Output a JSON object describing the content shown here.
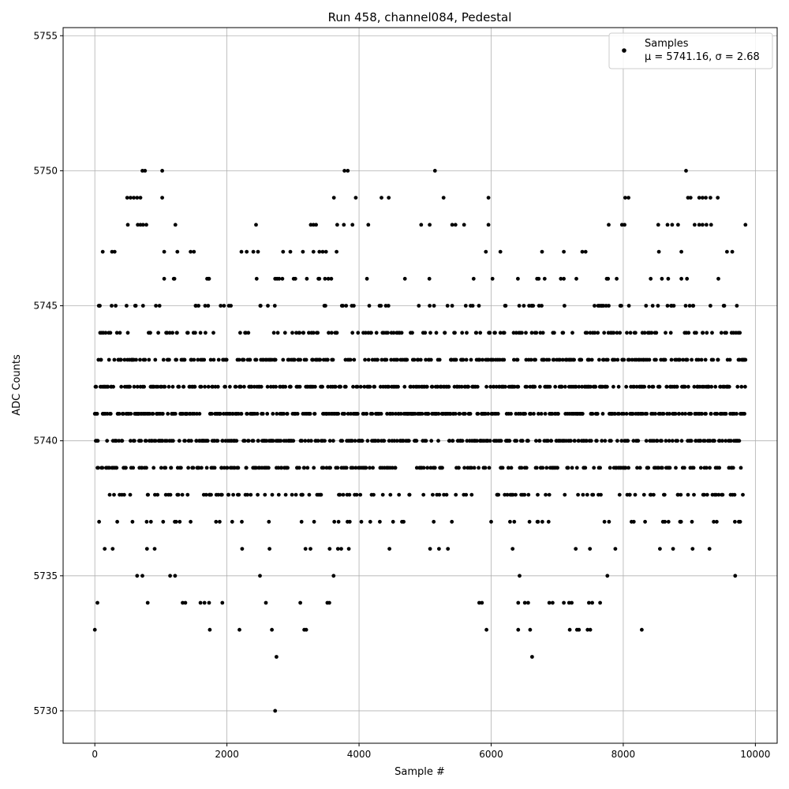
{
  "chart_data": {
    "type": "scatter",
    "title": "Run 458, channel084, Pedestal",
    "xlabel": "Sample #",
    "ylabel": "ADC Counts",
    "xlim": [
      -480,
      10330
    ],
    "ylim": [
      5728.8,
      5755.3
    ],
    "xticks": [
      0,
      2000,
      4000,
      6000,
      8000,
      10000
    ],
    "yticks": [
      5730,
      5735,
      5740,
      5745,
      5750,
      5755
    ],
    "grid": true,
    "marker_color": "#000000",
    "legend": {
      "placement": "top-right",
      "entries": [
        "Samples",
        "μ = 5741.16, σ = 2.68"
      ]
    },
    "series": [
      {
        "name": "Samples",
        "sample_count": 9850,
        "x_range": [
          0,
          9850
        ],
        "mean": 5741.16,
        "std": 2.68,
        "points": [
          [
            0,
            5733
          ],
          [
            2730,
            5730
          ],
          [
            2750,
            5732
          ],
          [
            6620,
            5732
          ],
          [
            1740,
            5733
          ],
          [
            2190,
            5733
          ],
          [
            2680,
            5733
          ],
          [
            3170,
            5733
          ],
          [
            3200,
            5733
          ],
          [
            5930,
            5733
          ],
          [
            6410,
            5733
          ],
          [
            6590,
            5733
          ],
          [
            7190,
            5733
          ],
          [
            7300,
            5733
          ],
          [
            7330,
            5733
          ],
          [
            7460,
            5733
          ],
          [
            7500,
            5733
          ],
          [
            8280,
            5733
          ],
          [
            40,
            5734
          ],
          [
            800,
            5734
          ],
          [
            1330,
            5734
          ],
          [
            1370,
            5734
          ],
          [
            1600,
            5734
          ],
          [
            1660,
            5734
          ],
          [
            1730,
            5734
          ],
          [
            1930,
            5734
          ],
          [
            2590,
            5734
          ],
          [
            3110,
            5734
          ],
          [
            3520,
            5734
          ],
          [
            3550,
            5734
          ],
          [
            5820,
            5734
          ],
          [
            5860,
            5734
          ],
          [
            6410,
            5734
          ],
          [
            6510,
            5734
          ],
          [
            6560,
            5734
          ],
          [
            6880,
            5734
          ],
          [
            6930,
            5734
          ],
          [
            7100,
            5734
          ],
          [
            7180,
            5734
          ],
          [
            7220,
            5734
          ],
          [
            7480,
            5734
          ],
          [
            7530,
            5734
          ],
          [
            7650,
            5734
          ],
          [
            720,
            5750
          ],
          [
            760,
            5750
          ],
          [
            1020,
            5750
          ],
          [
            3780,
            5750
          ],
          [
            3830,
            5750
          ],
          [
            5150,
            5750
          ],
          [
            8950,
            5750
          ],
          [
            490,
            5749
          ],
          [
            540,
            5749
          ],
          [
            590,
            5749
          ],
          [
            640,
            5749
          ],
          [
            690,
            5749
          ],
          [
            1020,
            5749
          ],
          [
            3620,
            5749
          ],
          [
            3950,
            5749
          ],
          [
            4340,
            5749
          ],
          [
            4450,
            5749
          ],
          [
            5280,
            5749
          ],
          [
            5960,
            5749
          ],
          [
            8030,
            5749
          ],
          [
            8080,
            5749
          ],
          [
            8980,
            5749
          ],
          [
            9020,
            5749
          ],
          [
            9150,
            5749
          ],
          [
            9200,
            5749
          ],
          [
            9250,
            5749
          ],
          [
            9320,
            5749
          ],
          [
            9430,
            5749
          ],
          [
            500,
            5748
          ],
          [
            650,
            5748
          ],
          [
            690,
            5748
          ],
          [
            730,
            5748
          ],
          [
            780,
            5748
          ],
          [
            1220,
            5748
          ],
          [
            2440,
            5748
          ],
          [
            3270,
            5748
          ],
          [
            3310,
            5748
          ],
          [
            3350,
            5748
          ],
          [
            3670,
            5748
          ],
          [
            3770,
            5748
          ],
          [
            3900,
            5748
          ],
          [
            4140,
            5748
          ],
          [
            4940,
            5748
          ],
          [
            5070,
            5748
          ],
          [
            5410,
            5748
          ],
          [
            5460,
            5748
          ],
          [
            5590,
            5748
          ],
          [
            5960,
            5748
          ],
          [
            7780,
            5748
          ],
          [
            7980,
            5748
          ],
          [
            8020,
            5748
          ],
          [
            8530,
            5748
          ],
          [
            8670,
            5748
          ],
          [
            8740,
            5748
          ],
          [
            8830,
            5748
          ],
          [
            9080,
            5748
          ],
          [
            9150,
            5748
          ],
          [
            9200,
            5748
          ],
          [
            9260,
            5748
          ],
          [
            9330,
            5748
          ],
          [
            9850,
            5748
          ],
          [
            120,
            5747
          ],
          [
            260,
            5747
          ],
          [
            300,
            5747
          ],
          [
            1050,
            5747
          ],
          [
            1250,
            5747
          ],
          [
            1450,
            5747
          ],
          [
            1500,
            5747
          ],
          [
            2220,
            5747
          ],
          [
            2300,
            5747
          ],
          [
            2400,
            5747
          ],
          [
            2470,
            5747
          ],
          [
            2850,
            5747
          ],
          [
            2960,
            5747
          ],
          [
            3150,
            5747
          ],
          [
            3310,
            5747
          ],
          [
            3400,
            5747
          ],
          [
            3450,
            5747
          ],
          [
            3500,
            5747
          ],
          [
            3660,
            5747
          ],
          [
            5920,
            5747
          ],
          [
            6140,
            5747
          ],
          [
            6770,
            5747
          ],
          [
            7100,
            5747
          ],
          [
            7380,
            5747
          ],
          [
            7430,
            5747
          ],
          [
            8540,
            5747
          ],
          [
            8880,
            5747
          ],
          [
            9570,
            5747
          ],
          [
            9650,
            5747
          ]
        ]
      }
    ]
  }
}
